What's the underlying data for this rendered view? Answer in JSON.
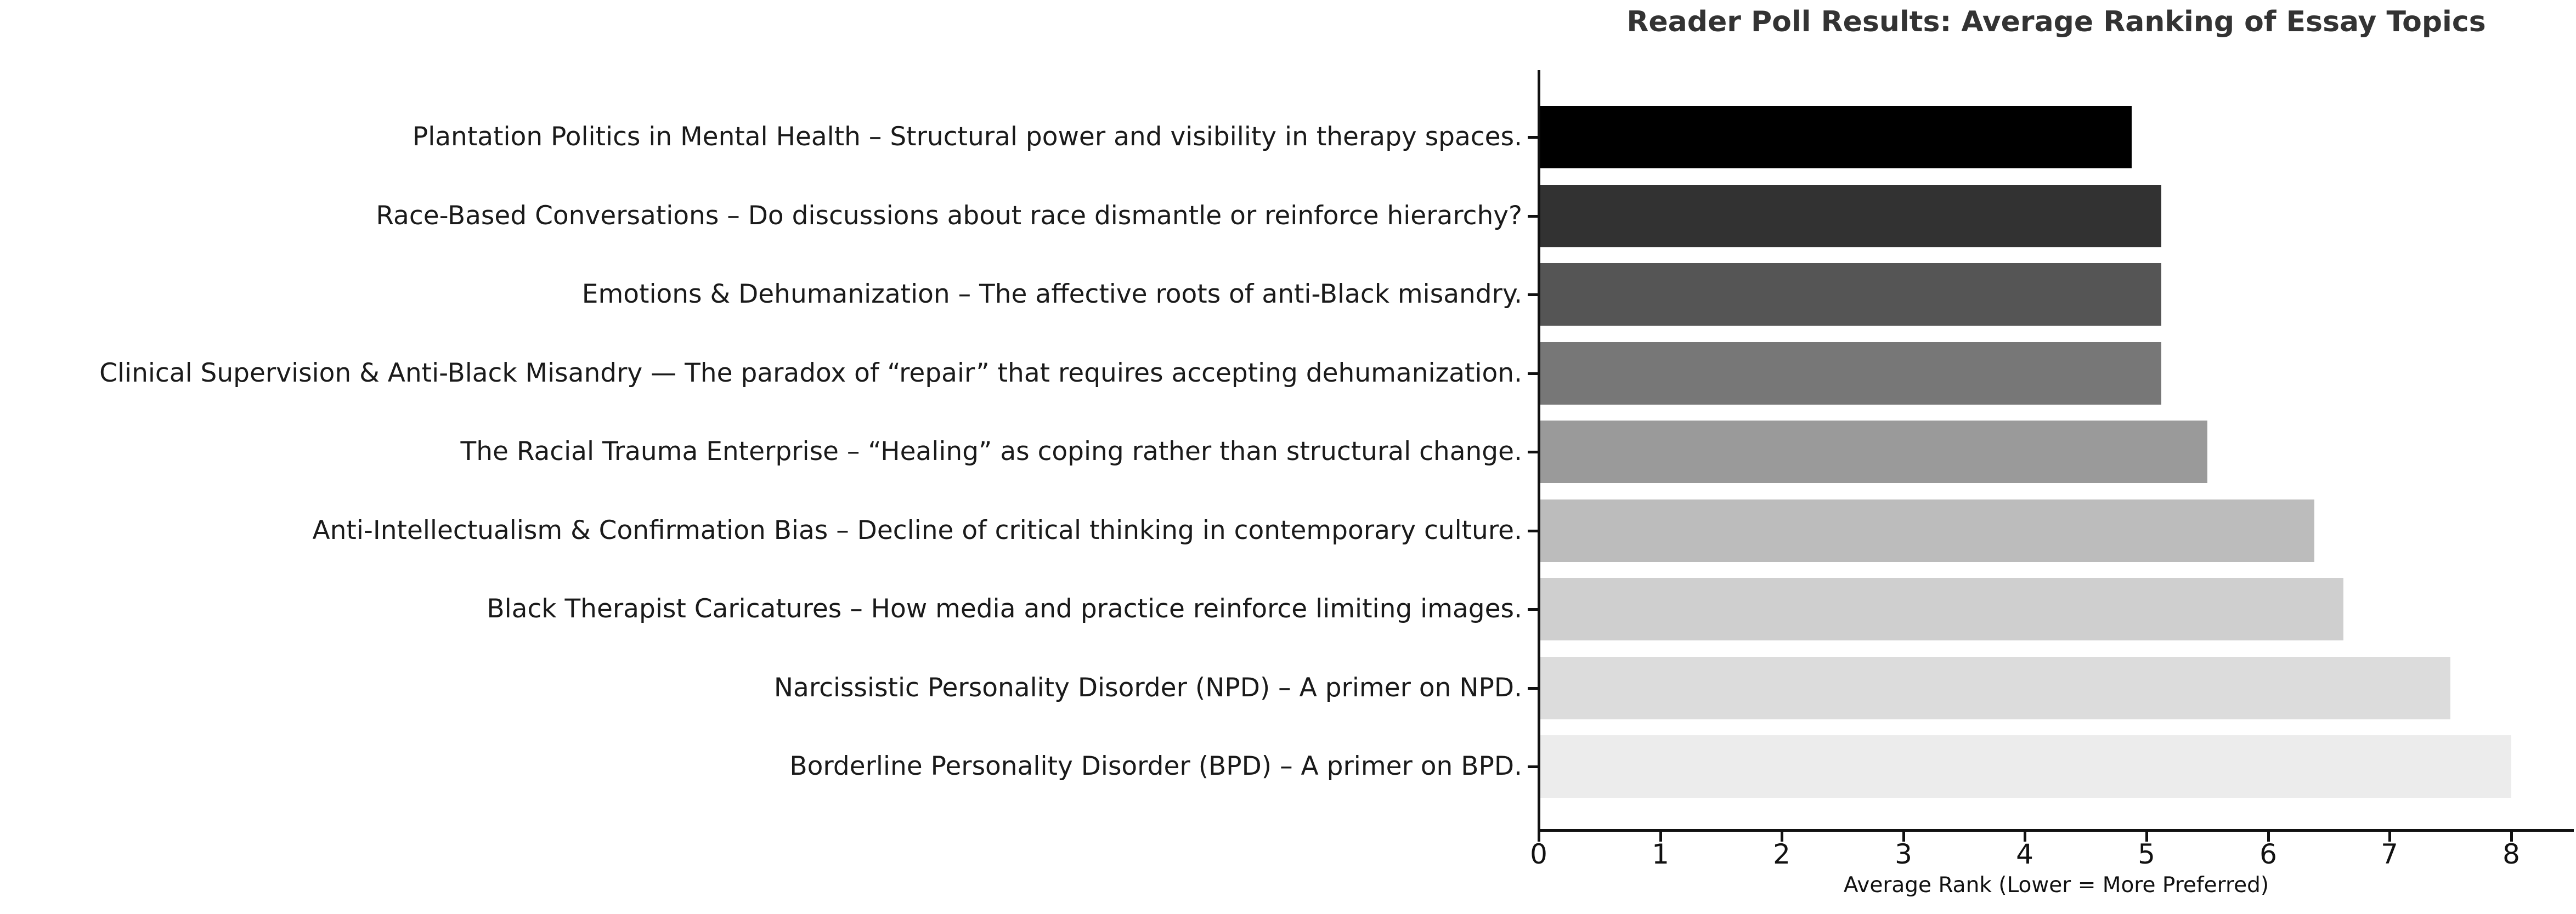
{
  "chart_data": {
    "type": "bar",
    "orientation": "horizontal",
    "title": "Reader Poll Results: Average Ranking of Essay Topics",
    "xlabel": "Average Rank (Lower = More Preferred)",
    "ylabel": "",
    "xlim": [
      0,
      8.5
    ],
    "grid": false,
    "legend": "none",
    "x_ticks": [
      "0",
      "1",
      "2",
      "3",
      "4",
      "5",
      "6",
      "7",
      "8"
    ],
    "categories": [
      "Plantation Politics in Mental Health – Structural power and visibility in therapy spaces.",
      "Race-Based Conversations – Do discussions about race dismantle or reinforce hierarchy?",
      "Emotions & Dehumanization – The affective roots of anti-Black misandry.",
      "Clinical Supervision & Anti-Black Misandry — The paradox of “repair” that requires accepting dehumanization.",
      "The Racial Trauma Enterprise – “Healing” as coping rather than structural change.",
      "Anti-Intellectualism & Confirmation Bias – Decline of critical thinking in contemporary culture.",
      "Black Therapist Caricatures – How media and practice reinforce limiting images.",
      "Narcissistic Personality Disorder (NPD) – A primer on NPD.",
      "Borderline Personality Disorder (BPD) – A primer on BPD."
    ],
    "values": [
      4.88,
      5.12,
      5.12,
      5.12,
      5.5,
      6.38,
      6.62,
      7.5,
      8.0
    ],
    "bar_colors": [
      "#000000",
      "#323232",
      "#555555",
      "#777777",
      "#9a9a9a",
      "#bcbcbc",
      "#cfcfcf",
      "#dcdcdc",
      "#ececec"
    ],
    "axis_color": "#111111",
    "title_color": "#333333"
  }
}
